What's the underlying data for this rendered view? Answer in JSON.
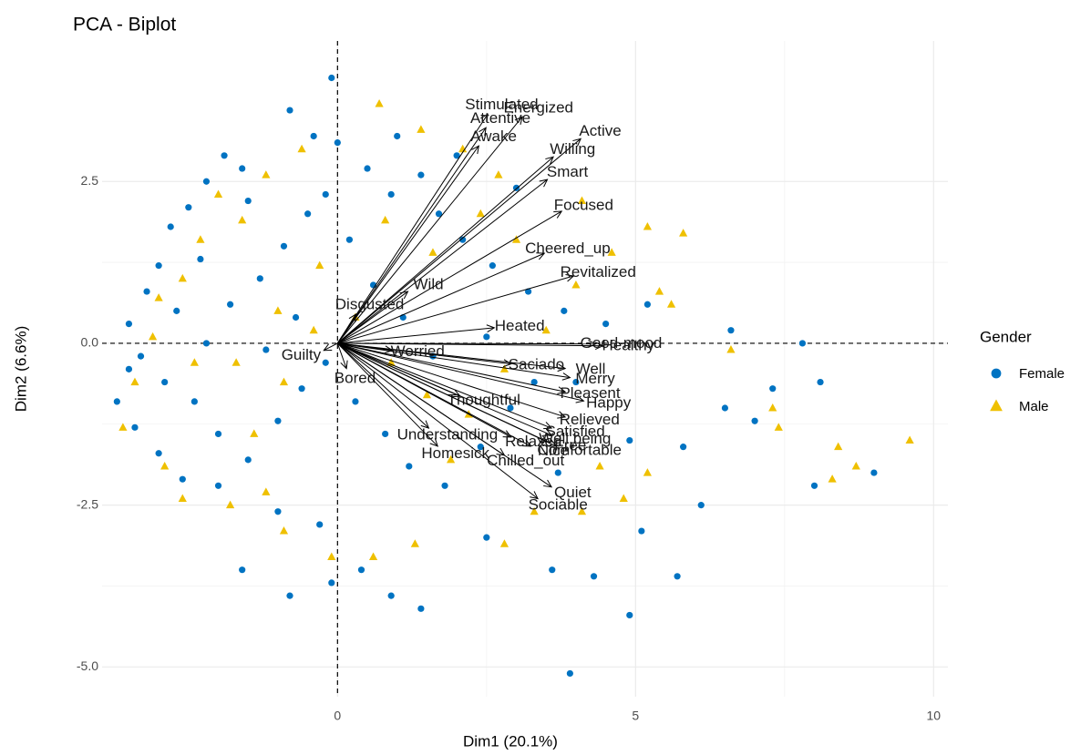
{
  "chart_data": {
    "type": "biplot",
    "title": "PCA - Biplot",
    "x_label": "Dim1 (20.1%)",
    "y_label": "Dim2 (6.6%)",
    "xlim": [
      -3.95,
      10.24
    ],
    "ylim": [
      -5.46,
      4.67
    ],
    "xticks": [
      0,
      5,
      10
    ],
    "yticks": [
      {
        "value": -5,
        "label": "-5.0"
      },
      {
        "value": -2.5,
        "label": "-2.5"
      },
      {
        "value": 0,
        "label": "0.0"
      },
      {
        "value": 2.5,
        "label": "2.5"
      }
    ],
    "grid": true,
    "legend_title": "Gender",
    "legend": "right",
    "series": [
      {
        "name": "Female",
        "color": "#0073C2",
        "shape": "circle",
        "x": [
          -3.5,
          -3.3,
          -3.2,
          -3.0,
          -2.8,
          -2.5,
          -2.2,
          -1.9,
          -1.6,
          -0.8,
          -0.4,
          0.0,
          -0.1,
          0.5,
          0.9,
          1.4,
          1.7,
          2.1,
          2.6,
          3.2,
          3.8,
          4.5,
          5.2,
          6.6,
          7.8,
          8.1,
          9.0,
          8.0,
          7.0,
          6.1,
          5.8,
          4.9,
          5.1,
          4.3,
          4.9,
          3.9,
          5.7,
          3.6,
          2.5,
          1.4,
          0.9,
          0.4,
          -0.1,
          -0.8,
          -1.6,
          -0.3,
          -1.0,
          -2.0,
          -2.6,
          -3.0,
          -3.4,
          -3.7,
          -3.5,
          -2.9,
          -2.4,
          -2.0,
          -1.5,
          -1.0,
          -0.6,
          -0.2,
          0.3,
          0.8,
          1.2,
          1.8,
          2.4,
          2.9,
          3.3,
          -2.7,
          -2.2,
          -1.8,
          -1.3,
          -0.9,
          -0.5,
          0.2,
          0.6,
          1.1,
          1.6,
          -1.2,
          -0.7,
          -2.3,
          -1.5,
          -0.2,
          1.0,
          2.0,
          3.0,
          2.5,
          4.0,
          3.7,
          6.5,
          7.3
        ],
        "y": [
          0.3,
          -0.2,
          0.8,
          1.2,
          1.8,
          2.1,
          2.5,
          2.9,
          2.7,
          3.6,
          3.2,
          3.1,
          4.1,
          2.7,
          2.3,
          2.6,
          2.0,
          1.6,
          1.2,
          0.8,
          0.5,
          0.3,
          0.6,
          0.2,
          0.0,
          -0.6,
          -2.0,
          -2.2,
          -1.2,
          -2.5,
          -1.6,
          -1.5,
          -2.9,
          -3.6,
          -4.2,
          -5.1,
          -3.6,
          -3.5,
          -3.0,
          -4.1,
          -3.9,
          -3.5,
          -3.7,
          -3.9,
          -3.5,
          -2.8,
          -2.6,
          -2.2,
          -2.1,
          -1.7,
          -1.3,
          -0.9,
          -0.4,
          -0.6,
          -0.9,
          -1.4,
          -1.8,
          -1.2,
          -0.7,
          -0.3,
          -0.9,
          -1.4,
          -1.9,
          -2.2,
          -1.6,
          -1.0,
          -0.6,
          0.5,
          0.0,
          0.6,
          1.0,
          1.5,
          2.0,
          1.6,
          0.9,
          0.4,
          -0.2,
          -0.1,
          0.4,
          1.3,
          2.2,
          2.3,
          3.2,
          2.9,
          2.4,
          0.1,
          -0.6,
          -2.0,
          -1.0,
          -0.7
        ]
      },
      {
        "name": "Male",
        "color": "#EFC000",
        "shape": "triangle",
        "x": [
          -3.6,
          -3.4,
          -3.1,
          -2.9,
          -2.6,
          -2.3,
          -2.0,
          -1.6,
          -1.2,
          -0.6,
          0.7,
          1.4,
          2.1,
          2.7,
          4.1,
          5.2,
          5.8,
          5.4,
          5.6,
          6.6,
          7.3,
          7.4,
          8.4,
          8.7,
          9.6,
          8.3,
          4.8,
          4.1,
          5.2,
          3.3,
          2.8,
          1.3,
          0.6,
          -0.1,
          -0.9,
          -1.2,
          -1.8,
          -1.4,
          -0.9,
          -0.4,
          0.3,
          0.9,
          1.5,
          2.2,
          2.8,
          3.5,
          4.0,
          4.6,
          3.0,
          2.4,
          1.6,
          0.8,
          -0.3,
          -1.0,
          -1.7,
          -2.4,
          -3.0,
          -2.6,
          1.9,
          4.4
        ],
        "y": [
          -1.3,
          -0.6,
          0.1,
          -1.9,
          -2.4,
          1.6,
          2.3,
          1.9,
          2.6,
          3.0,
          3.7,
          3.3,
          3.0,
          2.6,
          2.2,
          1.8,
          1.7,
          0.8,
          0.6,
          -0.1,
          -1.0,
          -1.3,
          -1.6,
          -1.9,
          -1.5,
          -2.1,
          -2.4,
          -2.6,
          -2.0,
          -2.6,
          -3.1,
          -3.1,
          -3.3,
          -3.3,
          -2.9,
          -2.3,
          -2.5,
          -1.4,
          -0.6,
          0.2,
          0.4,
          -0.3,
          -0.8,
          -1.1,
          -0.4,
          0.2,
          0.9,
          1.4,
          1.6,
          2.0,
          1.4,
          1.9,
          1.2,
          0.5,
          -0.3,
          -0.3,
          0.7,
          1.0,
          -1.8,
          -1.9
        ]
      }
    ],
    "variables": [
      {
        "name": "Stimulated",
        "x": 2.52,
        "y": 3.54
      },
      {
        "name": "Energized",
        "x": 3.1,
        "y": 3.5
      },
      {
        "name": "Attentive",
        "x": 2.49,
        "y": 3.33
      },
      {
        "name": "Active",
        "x": 4.08,
        "y": 3.16
      },
      {
        "name": "Awake",
        "x": 2.37,
        "y": 3.05
      },
      {
        "name": "Willing",
        "x": 3.62,
        "y": 2.88
      },
      {
        "name": "Smart",
        "x": 3.52,
        "y": 2.53
      },
      {
        "name": "Focused",
        "x": 3.76,
        "y": 2.04
      },
      {
        "name": "Cheered_up",
        "x": 3.47,
        "y": 1.39
      },
      {
        "name": "Revitalized",
        "x": 3.96,
        "y": 1.04
      },
      {
        "name": "Wild",
        "x": 1.18,
        "y": 0.8
      },
      {
        "name": "Disgusted",
        "x": 0.31,
        "y": 0.45
      },
      {
        "name": "Heated",
        "x": 2.63,
        "y": 0.24
      },
      {
        "name": "Good-mood",
        "x": 4.33,
        "y": -0.01
      },
      {
        "name": "Healthy",
        "x": 4.45,
        "y": -0.04
      },
      {
        "name": "Well",
        "x": 3.82,
        "y": -0.39
      },
      {
        "name": "Saciado",
        "x": 2.91,
        "y": -0.32
      },
      {
        "name": "Worried",
        "x": 0.92,
        "y": -0.11
      },
      {
        "name": "Guilty",
        "x": -0.23,
        "y": -0.11
      },
      {
        "name": "Merry",
        "x": 3.9,
        "y": -0.53
      },
      {
        "name": "Happy",
        "x": 4.13,
        "y": -0.89
      },
      {
        "name": "Pleasent",
        "x": 3.82,
        "y": -0.75
      },
      {
        "name": "Thoughtful",
        "x": 2.06,
        "y": -0.82
      },
      {
        "name": "Bored",
        "x": 0.15,
        "y": -0.39
      },
      {
        "name": "Relieved",
        "x": 3.82,
        "y": -1.14
      },
      {
        "name": "Satisfied",
        "x": 3.59,
        "y": -1.31
      },
      {
        "name": "Understanding",
        "x": 1.53,
        "y": -1.31
      },
      {
        "name": "Relaxed",
        "x": 2.91,
        "y": -1.45
      },
      {
        "name": "Free",
        "x": 3.52,
        "y": -1.52
      },
      {
        "name": "Well.being",
        "x": 3.59,
        "y": -1.42
      },
      {
        "name": "Comfortable",
        "x": 3.67,
        "y": -1.59
      },
      {
        "name": "Homesick",
        "x": 1.68,
        "y": -1.59
      },
      {
        "name": "Nice",
        "x": 3.24,
        "y": -1.59
      },
      {
        "name": "Sociable",
        "x": 3.36,
        "y": -2.4
      },
      {
        "name": "Quiet",
        "x": 3.59,
        "y": -2.22
      },
      {
        "name": "Chilled_out",
        "x": 2.8,
        "y": -1.73
      }
    ]
  }
}
